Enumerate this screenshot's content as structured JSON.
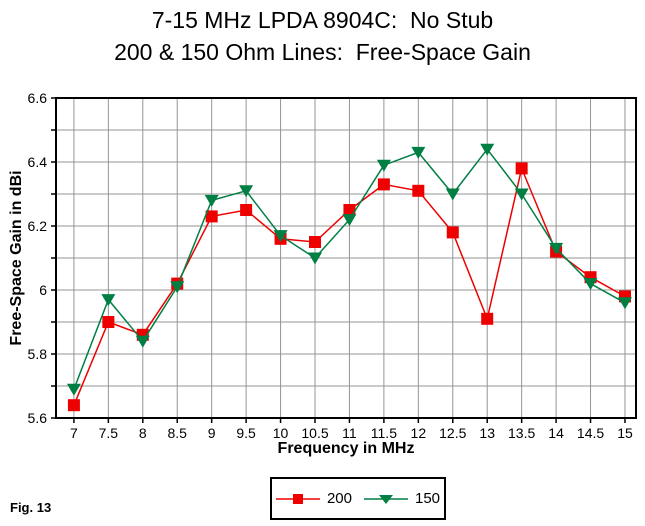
{
  "figure": {
    "title_line1": "7-15 MHz LPDA 8904C:  No Stub",
    "title_line2": "200 & 150 Ohm Lines:  Free-Space Gain",
    "caption": "Fig. 13"
  },
  "colors": {
    "series_200": "#ee0000",
    "series_150": "#007f45",
    "grid": "#949494",
    "axis": "#000000",
    "background": "#ffffff"
  },
  "chart_data": {
    "type": "line",
    "title": "7-15 MHz LPDA 8904C:  No Stub",
    "subtitle": "200 & 150 Ohm Lines:  Free-Space Gain",
    "xlabel": "Frequency in MHz",
    "ylabel": "Free-Space Gain in dBi",
    "x": [
      7,
      7.5,
      8,
      8.5,
      9,
      9.5,
      10,
      10.5,
      11,
      11.5,
      12,
      12.5,
      13,
      13.5,
      14,
      14.5,
      15
    ],
    "x_tick_labels": [
      "7",
      "7.5",
      "8",
      "8.5",
      "9",
      "9.5",
      "10",
      "10.5",
      "11",
      "11.5",
      "12",
      "12.5",
      "13",
      "13.5",
      "14",
      "14.5",
      "15"
    ],
    "y_tick_labels": [
      "5.6",
      "5.8",
      "6",
      "6.2",
      "6.4",
      "6.6"
    ],
    "xlim": [
      6.74,
      15.16
    ],
    "ylim": [
      5.6,
      6.6
    ],
    "y_major_step": 0.2,
    "y_minor_step": 0.1,
    "grid": true,
    "legend_position": "bottom-center",
    "series": [
      {
        "name": "200",
        "marker": "square",
        "color": "#ee0000",
        "values": [
          5.64,
          5.9,
          5.86,
          6.02,
          6.23,
          6.25,
          6.16,
          6.15,
          6.25,
          6.33,
          6.31,
          6.18,
          5.91,
          6.38,
          6.12,
          6.04,
          5.98
        ]
      },
      {
        "name": "150",
        "marker": "triangle-down",
        "color": "#007f45",
        "values": [
          5.69,
          5.97,
          5.84,
          6.01,
          6.28,
          6.31,
          6.17,
          6.1,
          6.22,
          6.39,
          6.43,
          6.3,
          6.44,
          6.3,
          6.13,
          6.02,
          5.96
        ]
      }
    ]
  }
}
